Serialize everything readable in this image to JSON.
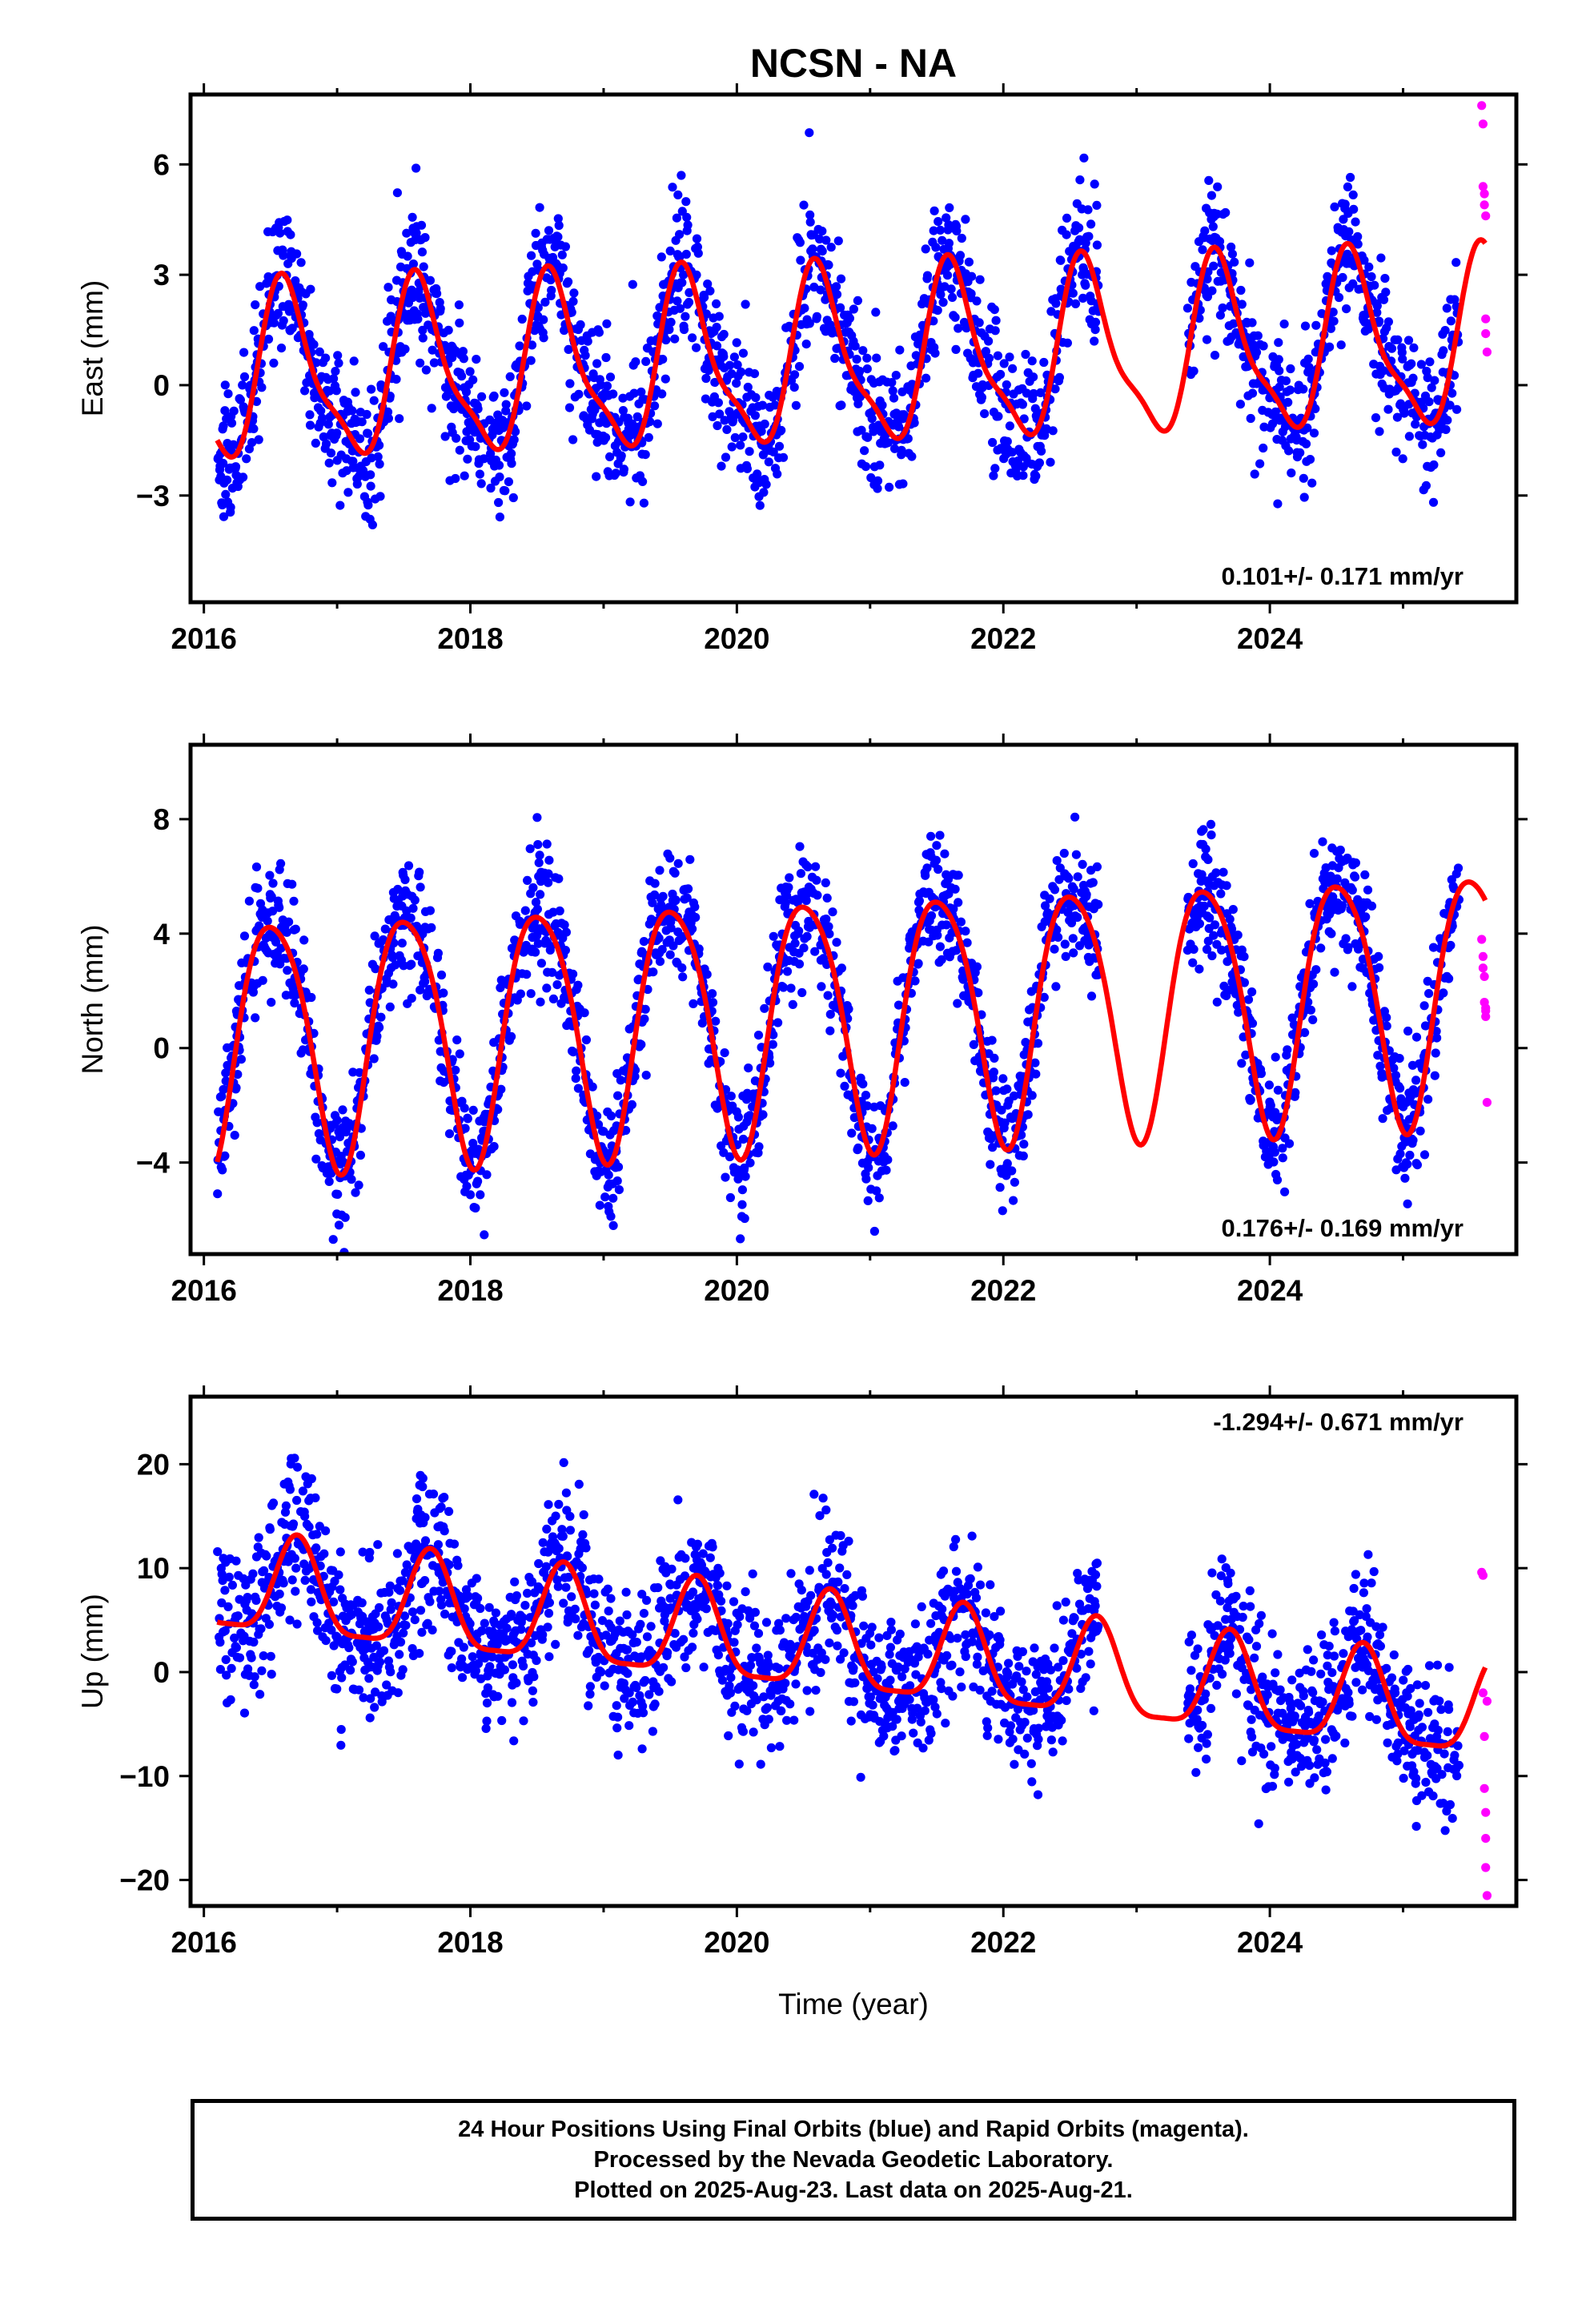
{
  "figure": {
    "title": "NCSN - NA",
    "xlabel": "Time (year)",
    "caption": [
      "24 Hour Positions Using Final Orbits (blue) and Rapid Orbits (magenta).",
      "Processed by the Nevada Geodetic Laboratory.",
      "Plotted on 2025-Aug-23. Last data on 2025-Aug-21."
    ]
  },
  "colors": {
    "final_orbits": "#0000ff",
    "rapid_orbits": "#ff00ff",
    "seasonal_fit": "#ff0000",
    "frame": "#000000"
  },
  "chart_data": [
    {
      "type": "scatter",
      "id": "east",
      "ylabel": "East (mm)",
      "annotation": "0.101+/- 0.171 mm/yr",
      "annotation_position": "bottom-right",
      "xlim": [
        2015.9,
        2025.85
      ],
      "ylim": [
        -5.9,
        7.9
      ],
      "x_ticks": [
        2016,
        2018,
        2020,
        2022,
        2024
      ],
      "x_tick_labels": [
        "2016",
        "2018",
        "2020",
        "2022",
        "2024"
      ],
      "y_ticks": [
        -3,
        0,
        3,
        6
      ],
      "y_tick_labels": [
        "−3",
        "0",
        "3",
        "6"
      ],
      "grid": false,
      "data_gap": [
        2022.72,
        2023.38
      ],
      "series": [
        {
          "role": "final_orbits",
          "color": "#0000ff",
          "marker": "dot",
          "model": {
            "start": 2016.1,
            "end": 2025.42,
            "step_days": 1,
            "offset": 0.2,
            "trend": 0.101,
            "annual_amp": 2.25,
            "annual_peak": 0.62,
            "semiannual_amp": 0.65,
            "semiannual_peak": 0.05,
            "noise_sd": 0.95,
            "seed": 11
          }
        },
        {
          "role": "rapid_orbits",
          "color": "#ff00ff",
          "marker": "dot",
          "x": [
            2025.59,
            2025.6,
            2025.6,
            2025.61,
            2025.61,
            2025.62,
            2025.62,
            2025.62,
            2025.63
          ],
          "y": [
            7.6,
            7.1,
            5.4,
            5.2,
            4.9,
            4.6,
            1.8,
            1.4,
            0.9
          ]
        },
        {
          "role": "seasonal_fit",
          "color": "#ff0000",
          "line": "solid",
          "model": {
            "start": 2016.1,
            "end": 2025.62,
            "step_days": 4,
            "offset": 0.2,
            "trend": 0.101,
            "annual_amp": 2.25,
            "annual_peak": 0.62,
            "semiannual_amp": 0.65,
            "semiannual_peak": 0.05
          }
        }
      ]
    },
    {
      "type": "scatter",
      "id": "north",
      "ylabel": "North (mm)",
      "annotation": "0.176+/- 0.169 mm/yr",
      "annotation_position": "bottom-right",
      "xlim": [
        2015.9,
        2025.85
      ],
      "ylim": [
        -7.2,
        10.6
      ],
      "x_ticks": [
        2016,
        2018,
        2020,
        2022,
        2024
      ],
      "x_tick_labels": [
        "2016",
        "2018",
        "2020",
        "2022",
        "2024"
      ],
      "y_ticks": [
        -4,
        0,
        4,
        8
      ],
      "y_tick_labels": [
        "−4",
        "0",
        "4",
        "8"
      ],
      "grid": false,
      "data_gap": [
        2022.72,
        2023.38
      ],
      "series": [
        {
          "role": "final_orbits",
          "color": "#0000ff",
          "marker": "dot",
          "model": {
            "start": 2016.1,
            "end": 2025.42,
            "step_days": 1,
            "offset": 0.3,
            "trend": 0.176,
            "annual_amp": 4.35,
            "annual_peak": 0.52,
            "semiannual_amp": 0.6,
            "semiannual_peak": 0.3,
            "noise_sd": 1.1,
            "seed": 23
          }
        },
        {
          "role": "rapid_orbits",
          "color": "#ff00ff",
          "marker": "dot",
          "x": [
            2025.59,
            2025.6,
            2025.6,
            2025.61,
            2025.61,
            2025.62,
            2025.62,
            2025.62,
            2025.63
          ],
          "y": [
            3.8,
            3.2,
            2.8,
            2.5,
            1.6,
            1.4,
            1.1,
            1.3,
            -1.9
          ]
        },
        {
          "role": "seasonal_fit",
          "color": "#ff0000",
          "line": "solid",
          "model": {
            "start": 2016.1,
            "end": 2025.62,
            "step_days": 4,
            "offset": 0.3,
            "trend": 0.176,
            "annual_amp": 4.35,
            "annual_peak": 0.52,
            "semiannual_amp": 0.6,
            "semiannual_peak": 0.3
          }
        }
      ]
    },
    {
      "type": "scatter",
      "id": "up",
      "ylabel": "Up (mm)",
      "annotation": "-1.294+/- 0.671 mm/yr",
      "annotation_position": "top-right",
      "xlim": [
        2015.9,
        2025.85
      ],
      "ylim": [
        -22.5,
        26.5
      ],
      "x_ticks": [
        2016,
        2018,
        2020,
        2022,
        2024
      ],
      "x_tick_labels": [
        "2016",
        "2018",
        "2020",
        "2022",
        "2024"
      ],
      "y_ticks": [
        -20,
        -10,
        0,
        10,
        20
      ],
      "y_tick_labels": [
        "−20",
        "−10",
        "0",
        "10",
        "20"
      ],
      "grid": false,
      "data_gap": [
        2022.72,
        2023.38
      ],
      "series": [
        {
          "role": "final_orbits",
          "color": "#0000ff",
          "marker": "dot",
          "model": {
            "start": 2016.1,
            "end": 2025.42,
            "step_days": 1,
            "offset": 8.3,
            "trend": -1.294,
            "annual_amp": 4.6,
            "annual_peak": 0.7,
            "semiannual_amp": 1.2,
            "semiannual_peak": 0.2,
            "noise_sd": 3.6,
            "seed": 37
          }
        },
        {
          "role": "rapid_orbits",
          "color": "#ff00ff",
          "marker": "dot",
          "x": [
            2025.59,
            2025.6,
            2025.6,
            2025.61,
            2025.61,
            2025.62,
            2025.62,
            2025.62,
            2025.63,
            2025.63
          ],
          "y": [
            9.6,
            9.3,
            -2.0,
            -6.2,
            -11.2,
            -13.5,
            -16.0,
            -18.8,
            -21.5,
            -2.8
          ]
        },
        {
          "role": "seasonal_fit",
          "color": "#ff0000",
          "line": "solid",
          "model": {
            "start": 2016.1,
            "end": 2025.62,
            "step_days": 4,
            "offset": 8.3,
            "trend": -1.294,
            "annual_amp": 4.6,
            "annual_peak": 0.7,
            "semiannual_amp": 1.2,
            "semiannual_peak": 0.2
          }
        }
      ]
    }
  ]
}
